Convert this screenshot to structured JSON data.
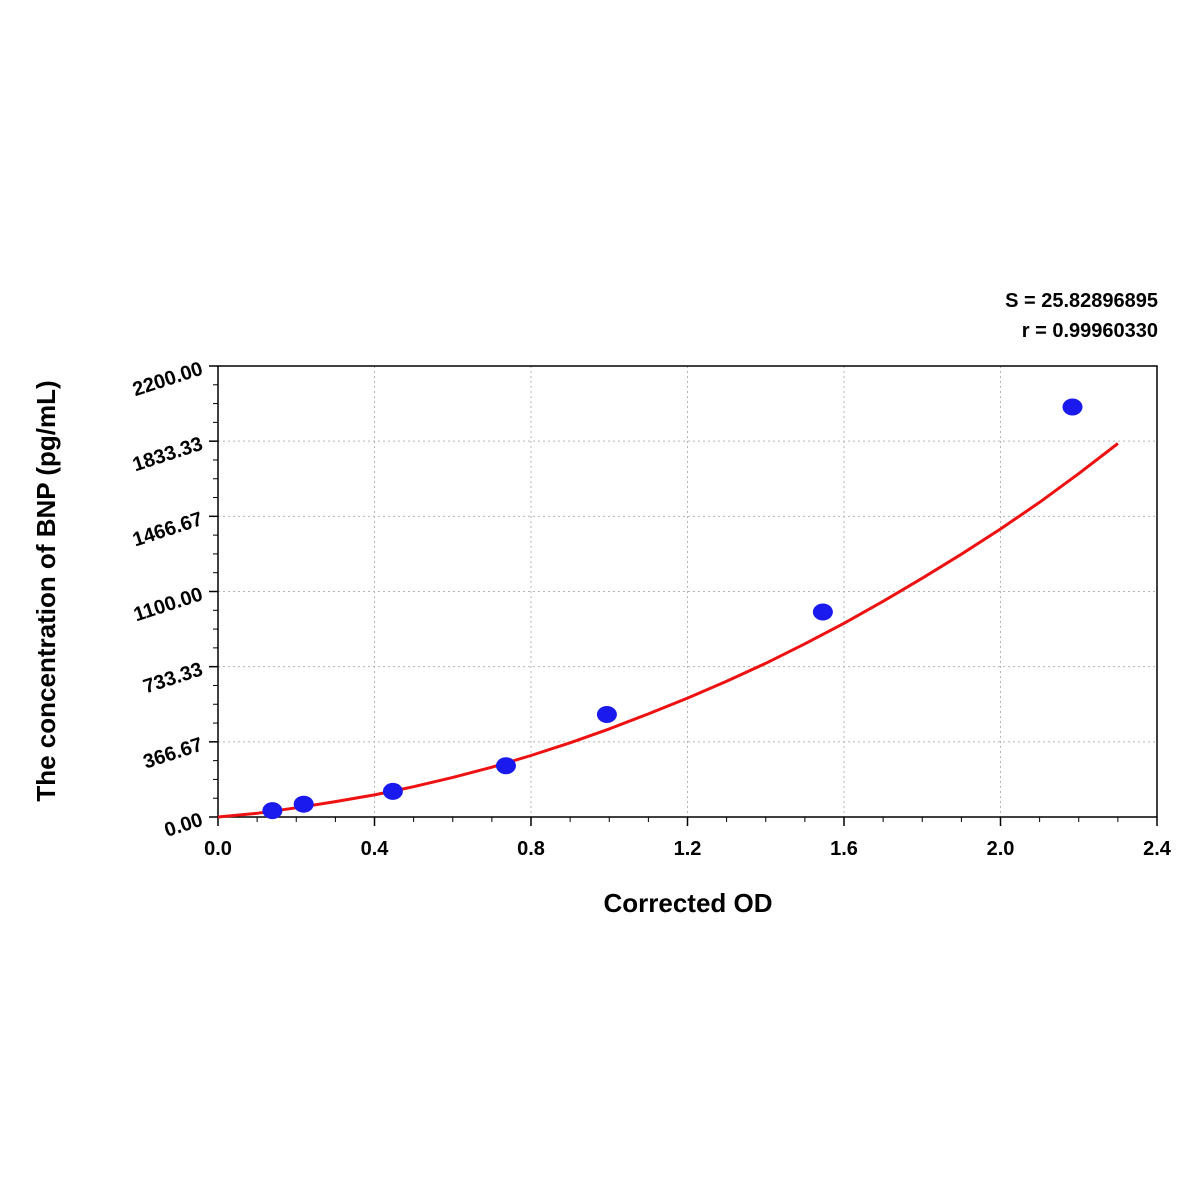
{
  "stats": {
    "s_text": "S = 25.82896895",
    "r_text": "r = 0.99960330"
  },
  "chart_data": {
    "type": "scatter",
    "title": "",
    "xlabel": "Corrected OD",
    "ylabel": "The concentration of BNP (pg/mL)",
    "xlim": [
      0.0,
      2.4
    ],
    "ylim": [
      0.0,
      2200.0
    ],
    "x_ticks": [
      "0.0",
      "0.4",
      "0.8",
      "1.2",
      "1.6",
      "2.0",
      "2.4"
    ],
    "y_ticks": [
      "0.00",
      "366.67",
      "733.33",
      "1100.00",
      "1466.67",
      "1833.33",
      "2200.00"
    ],
    "grid": true,
    "series": [
      {
        "kind": "points",
        "color": "#1a1aee",
        "points": [
          {
            "x": 0.139,
            "y": 31.25
          },
          {
            "x": 0.219,
            "y": 62.5
          },
          {
            "x": 0.447,
            "y": 125
          },
          {
            "x": 0.736,
            "y": 250
          },
          {
            "x": 0.994,
            "y": 500
          },
          {
            "x": 1.546,
            "y": 1000
          },
          {
            "x": 2.184,
            "y": 2000
          }
        ]
      },
      {
        "kind": "fit-curve",
        "color": "#ee1111",
        "points": [
          {
            "x": 0.0,
            "y": 0
          },
          {
            "x": 0.1,
            "y": 18
          },
          {
            "x": 0.2,
            "y": 45
          },
          {
            "x": 0.3,
            "y": 75
          },
          {
            "x": 0.4,
            "y": 108
          },
          {
            "x": 0.5,
            "y": 148
          },
          {
            "x": 0.6,
            "y": 193
          },
          {
            "x": 0.7,
            "y": 243
          },
          {
            "x": 0.8,
            "y": 300
          },
          {
            "x": 0.9,
            "y": 362
          },
          {
            "x": 1.0,
            "y": 430
          },
          {
            "x": 1.1,
            "y": 503
          },
          {
            "x": 1.2,
            "y": 580
          },
          {
            "x": 1.3,
            "y": 662
          },
          {
            "x": 1.4,
            "y": 750
          },
          {
            "x": 1.5,
            "y": 845
          },
          {
            "x": 1.6,
            "y": 945
          },
          {
            "x": 1.7,
            "y": 1052
          },
          {
            "x": 1.8,
            "y": 1165
          },
          {
            "x": 1.9,
            "y": 1282
          },
          {
            "x": 2.0,
            "y": 1405
          },
          {
            "x": 2.1,
            "y": 1535
          },
          {
            "x": 2.2,
            "y": 1675
          },
          {
            "x": 2.3,
            "y": 1822
          }
        ]
      }
    ]
  }
}
